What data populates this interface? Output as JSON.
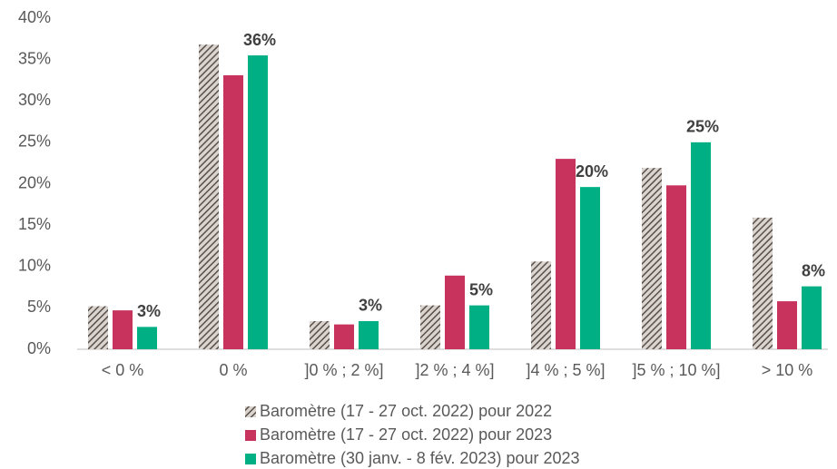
{
  "chart_data": {
    "type": "bar",
    "categories": [
      "< 0 %",
      "0 %",
      "]0 % ; 2 %]",
      "]2 % ; 4 %]",
      "]4 % ; 5 %]",
      "]5 % ; 10 %]",
      "> 10 %"
    ],
    "series": [
      {
        "name": "Baromètre (17 - 27 oct. 2022) pour 2022",
        "color": "#5a4f48",
        "pattern": "hatch",
        "values": [
          5.2,
          36.8,
          3.4,
          5.3,
          10.6,
          21.9,
          15.9
        ]
      },
      {
        "name": "Baromètre (17 - 27 oct. 2022) pour 2023",
        "color": "#c8335e",
        "values": [
          4.7,
          33.1,
          3.0,
          8.9,
          23.0,
          19.8,
          5.8
        ]
      },
      {
        "name": "Baromètre (30 janv. - 8 fév. 2023) pour 2023",
        "color": "#00b084",
        "values": [
          2.7,
          35.5,
          3.4,
          5.3,
          19.6,
          25.0,
          7.6
        ],
        "value_labels": [
          "3%",
          "36%",
          "3%",
          "5%",
          "20%",
          "25%",
          "8%"
        ]
      }
    ],
    "ylim": [
      0,
      40
    ],
    "yticks": [
      {
        "value": 0,
        "label": "0%"
      },
      {
        "value": 5,
        "label": "5%"
      },
      {
        "value": 10,
        "label": "10%"
      },
      {
        "value": 15,
        "label": "15%"
      },
      {
        "value": 20,
        "label": "20%"
      },
      {
        "value": 25,
        "label": "25%"
      },
      {
        "value": 30,
        "label": "30%"
      },
      {
        "value": 35,
        "label": "35%"
      },
      {
        "value": 40,
        "label": "40%"
      }
    ],
    "grid": false,
    "legend": "bottom"
  }
}
